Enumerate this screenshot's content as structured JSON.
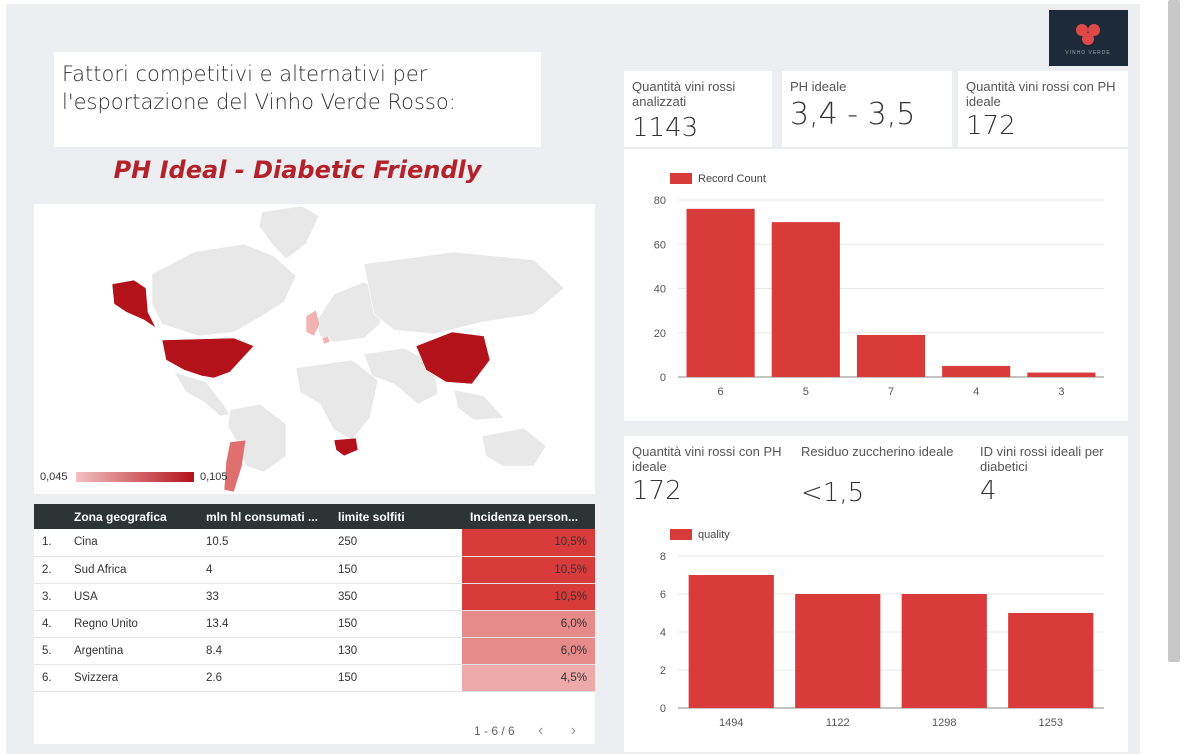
{
  "header": {
    "title": "Fattori competitivi e alternativi per l'esportazione del Vinho Verde Rosso:",
    "subtitle": "PH Ideal - Diabetic Friendly",
    "logo_text": "VINHO VERDE"
  },
  "map": {
    "legend_min": "0,045",
    "legend_max": "0,105",
    "colors": {
      "high": "#b3121a",
      "mid": "#e07070",
      "low": "#f2b3b3",
      "base": "#e8e8e8"
    }
  },
  "scorecards_top": [
    {
      "label": "Quantità vini rossi analizzati",
      "value": "1143"
    },
    {
      "label": "PH ideale",
      "value": "3,4 - 3,5"
    },
    {
      "label": "Quantità vini rossi con PH ideale",
      "value": "172"
    }
  ],
  "scorecards_bottom": [
    {
      "label": "Quantità vini rossi con PH ideale",
      "value": "172"
    },
    {
      "label": "Residuo zuccherino ideale",
      "value": "<1,5"
    },
    {
      "label": "ID vini rossi ideali per diabetici",
      "value": "4"
    }
  ],
  "table": {
    "headers": [
      "Zona geografica",
      "mln hl consumati ...",
      "limite solfiti",
      "Incidenza person..."
    ],
    "rows": [
      {
        "n": "1.",
        "zona": "Cina",
        "mln": "10.5",
        "solfiti": "250",
        "incidenza": "10,5%",
        "color": "#d93a3a"
      },
      {
        "n": "2.",
        "zona": "Sud Africa",
        "mln": "4",
        "solfiti": "150",
        "incidenza": "10,5%",
        "color": "#d93a3a"
      },
      {
        "n": "3.",
        "zona": "USA",
        "mln": "33",
        "solfiti": "350",
        "incidenza": "10,5%",
        "color": "#d93a3a"
      },
      {
        "n": "4.",
        "zona": "Regno Unito",
        "mln": "13.4",
        "solfiti": "150",
        "incidenza": "6,0%",
        "color": "#e68a8a"
      },
      {
        "n": "5.",
        "zona": "Argentina",
        "mln": "8.4",
        "solfiti": "130",
        "incidenza": "6,0%",
        "color": "#e68a8a"
      },
      {
        "n": "6.",
        "zona": "Svizzera",
        "mln": "2.6",
        "solfiti": "150",
        "incidenza": "4,5%",
        "color": "#eeaaaa"
      }
    ],
    "pager": "1 - 6 / 6"
  },
  "chart_data": [
    {
      "type": "bar",
      "legend": "Record Count",
      "categories": [
        "6",
        "5",
        "7",
        "4",
        "3"
      ],
      "values": [
        76,
        70,
        19,
        5,
        2
      ],
      "ylim": [
        0,
        80
      ],
      "yticks": [
        0,
        20,
        40,
        60,
        80
      ],
      "color": "#d93a3a",
      "grid": true,
      "legend_position": "top-left"
    },
    {
      "type": "bar",
      "legend": "quality",
      "categories": [
        "1494",
        "1122",
        "1298",
        "1253"
      ],
      "values": [
        7,
        6,
        6,
        5
      ],
      "ylim": [
        0,
        8
      ],
      "yticks": [
        0,
        2,
        4,
        6,
        8
      ],
      "color": "#d93a3a",
      "grid": true,
      "legend_position": "top-left"
    }
  ]
}
